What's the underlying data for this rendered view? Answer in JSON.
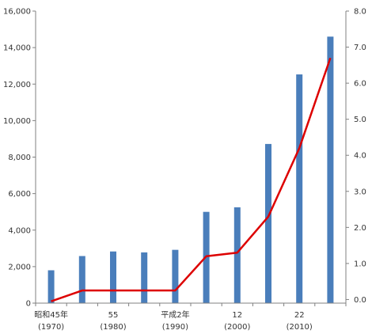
{
  "chart_data": {
    "type": "bar",
    "categories": [
      {
        "line1": "昭和45年",
        "line2": "(1970)"
      },
      {
        "line1": "",
        "line2": ""
      },
      {
        "line1": "55",
        "line2": "(1980)"
      },
      {
        "line1": "",
        "line2": ""
      },
      {
        "line1": "平成2年",
        "line2": "(1990)"
      },
      {
        "line1": "",
        "line2": ""
      },
      {
        "line1": "12",
        "line2": "(2000)"
      },
      {
        "line1": "",
        "line2": ""
      },
      {
        "line1": "22",
        "line2": "(2010)"
      },
      {
        "line1": "",
        "line2": ""
      }
    ],
    "series": [
      {
        "axis": "left",
        "type": "bar",
        "color": "#4a7ebb",
        "values": [
          1800,
          2580,
          2830,
          2780,
          2920,
          5000,
          5250,
          8720,
          12530,
          14600
        ]
      },
      {
        "axis": "right",
        "type": "line",
        "color": "#dd0000",
        "values": [
          -0.05,
          0.25,
          0.25,
          0.25,
          0.25,
          1.2,
          1.3,
          2.3,
          4.2,
          6.7
        ]
      }
    ],
    "y_left": {
      "min": 0,
      "max": 16000,
      "ticks": [
        0,
        2000,
        4000,
        6000,
        8000,
        10000,
        12000,
        14000,
        16000
      ],
      "tick_labels": [
        "0",
        "2,000",
        "4,000",
        "6,000",
        "8,000",
        "10,000",
        "12,000",
        "14,000",
        "16,000"
      ]
    },
    "y_right": {
      "min": -0.1,
      "max": 8.0,
      "ticks": [
        0,
        1,
        2,
        3,
        4,
        5,
        6,
        7,
        8
      ],
      "tick_labels": [
        "0.0",
        "1.0",
        "2.0",
        "3.0",
        "4.0",
        "5.0",
        "6.0",
        "7.0",
        "8.0"
      ]
    },
    "title": "",
    "xlabel": "",
    "ylabel": "",
    "legend": "none",
    "grid": false,
    "colors": {
      "axis": "#808080"
    }
  }
}
